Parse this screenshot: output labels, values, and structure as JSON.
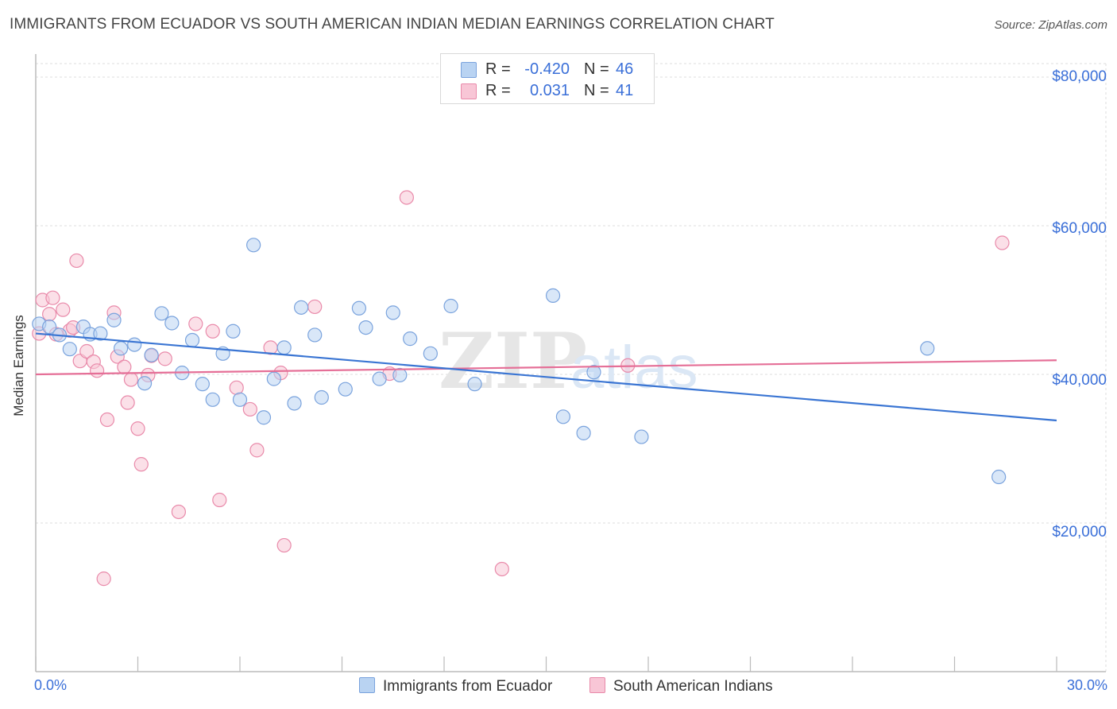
{
  "title": "IMMIGRANTS FROM ECUADOR VS SOUTH AMERICAN INDIAN MEDIAN EARNINGS CORRELATION CHART",
  "source": "Source: ZipAtlas.com",
  "watermark": {
    "zip": "ZIP",
    "atlas": "atlas"
  },
  "legend_top": {
    "rows": [
      {
        "r_label": "R =",
        "r_value": "-0.420",
        "n_label": "N =",
        "n_value": "46"
      },
      {
        "r_label": "R =",
        "r_value": "0.031",
        "n_label": "N =",
        "n_value": "41"
      }
    ]
  },
  "colors": {
    "blue_fill": "#b9d3f2",
    "blue_stroke": "#7aa3dd",
    "blue_line": "#3a75d3",
    "pink_fill": "#f8c6d6",
    "pink_stroke": "#e98aaa",
    "pink_line": "#e56f97",
    "accent_text": "#3a6fd8",
    "grid": "#dcdcdc"
  },
  "chart_data": {
    "type": "scatter",
    "title": "IMMIGRANTS FROM ECUADOR VS SOUTH AMERICAN INDIAN MEDIAN EARNINGS CORRELATION CHART",
    "xlabel": "",
    "ylabel": "Median Earnings",
    "xlim": [
      0,
      30
    ],
    "ylim": [
      0,
      80000
    ],
    "x_tick_labels": [
      "0.0%",
      "30.0%"
    ],
    "y_ticks": [
      20000,
      40000,
      60000,
      80000
    ],
    "y_tick_labels": [
      "$20,000",
      "$40,000",
      "$60,000",
      "$80,000"
    ],
    "grid": true,
    "legend_position": "bottom",
    "series": [
      {
        "name": "Immigrants from Ecuador",
        "r": -0.42,
        "n": 46,
        "trend": {
          "x": [
            0,
            30
          ],
          "y": [
            45500,
            33800
          ]
        },
        "points": [
          {
            "x": 0.1,
            "y": 46800
          },
          {
            "x": 0.4,
            "y": 46400
          },
          {
            "x": 0.7,
            "y": 45300
          },
          {
            "x": 1.0,
            "y": 43400
          },
          {
            "x": 1.4,
            "y": 46400
          },
          {
            "x": 1.6,
            "y": 45400
          },
          {
            "x": 1.9,
            "y": 45500
          },
          {
            "x": 2.3,
            "y": 47300
          },
          {
            "x": 2.5,
            "y": 43500
          },
          {
            "x": 2.9,
            "y": 44000
          },
          {
            "x": 3.2,
            "y": 38800
          },
          {
            "x": 3.4,
            "y": 42600
          },
          {
            "x": 3.7,
            "y": 48200
          },
          {
            "x": 4.0,
            "y": 46900
          },
          {
            "x": 4.3,
            "y": 40200
          },
          {
            "x": 4.6,
            "y": 44600
          },
          {
            "x": 4.9,
            "y": 38700
          },
          {
            "x": 5.2,
            "y": 36600
          },
          {
            "x": 5.5,
            "y": 42800
          },
          {
            "x": 5.8,
            "y": 45800
          },
          {
            "x": 6.0,
            "y": 36600
          },
          {
            "x": 6.4,
            "y": 57400
          },
          {
            "x": 6.7,
            "y": 34200
          },
          {
            "x": 7.0,
            "y": 39400
          },
          {
            "x": 7.3,
            "y": 43600
          },
          {
            "x": 7.6,
            "y": 36100
          },
          {
            "x": 7.8,
            "y": 49000
          },
          {
            "x": 8.2,
            "y": 45300
          },
          {
            "x": 8.4,
            "y": 36900
          },
          {
            "x": 9.1,
            "y": 38000
          },
          {
            "x": 9.5,
            "y": 48900
          },
          {
            "x": 9.7,
            "y": 46300
          },
          {
            "x": 10.1,
            "y": 39400
          },
          {
            "x": 10.5,
            "y": 48300
          },
          {
            "x": 10.7,
            "y": 39900
          },
          {
            "x": 11.0,
            "y": 44800
          },
          {
            "x": 11.6,
            "y": 42800
          },
          {
            "x": 12.2,
            "y": 49200
          },
          {
            "x": 12.9,
            "y": 38700
          },
          {
            "x": 15.2,
            "y": 50600
          },
          {
            "x": 15.5,
            "y": 34300
          },
          {
            "x": 16.1,
            "y": 32100
          },
          {
            "x": 16.4,
            "y": 40300
          },
          {
            "x": 17.8,
            "y": 31600
          },
          {
            "x": 26.2,
            "y": 43500
          },
          {
            "x": 28.3,
            "y": 26200
          }
        ]
      },
      {
        "name": "South American Indians",
        "r": 0.031,
        "n": 41,
        "trend": {
          "x": [
            0,
            30
          ],
          "y": [
            40000,
            41900
          ]
        },
        "points": [
          {
            "x": 0.1,
            "y": 45500
          },
          {
            "x": 0.2,
            "y": 50000
          },
          {
            "x": 0.4,
            "y": 48100
          },
          {
            "x": 0.5,
            "y": 50300
          },
          {
            "x": 0.6,
            "y": 45400
          },
          {
            "x": 0.8,
            "y": 48700
          },
          {
            "x": 1.0,
            "y": 45900
          },
          {
            "x": 1.1,
            "y": 46300
          },
          {
            "x": 1.2,
            "y": 55300
          },
          {
            "x": 1.3,
            "y": 41800
          },
          {
            "x": 1.5,
            "y": 43100
          },
          {
            "x": 1.7,
            "y": 41700
          },
          {
            "x": 1.8,
            "y": 40500
          },
          {
            "x": 2.0,
            "y": 12500
          },
          {
            "x": 2.1,
            "y": 33900
          },
          {
            "x": 2.3,
            "y": 48300
          },
          {
            "x": 2.4,
            "y": 42400
          },
          {
            "x": 2.6,
            "y": 41000
          },
          {
            "x": 2.7,
            "y": 36200
          },
          {
            "x": 2.8,
            "y": 39300
          },
          {
            "x": 3.0,
            "y": 32700
          },
          {
            "x": 3.1,
            "y": 27900
          },
          {
            "x": 3.3,
            "y": 39900
          },
          {
            "x": 3.4,
            "y": 42500
          },
          {
            "x": 3.8,
            "y": 42100
          },
          {
            "x": 4.2,
            "y": 21500
          },
          {
            "x": 4.7,
            "y": 46800
          },
          {
            "x": 5.2,
            "y": 45800
          },
          {
            "x": 5.4,
            "y": 23100
          },
          {
            "x": 5.9,
            "y": 38200
          },
          {
            "x": 6.3,
            "y": 35300
          },
          {
            "x": 6.5,
            "y": 29800
          },
          {
            "x": 6.9,
            "y": 43600
          },
          {
            "x": 7.2,
            "y": 40200
          },
          {
            "x": 7.3,
            "y": 17000
          },
          {
            "x": 8.2,
            "y": 49100
          },
          {
            "x": 10.4,
            "y": 40100
          },
          {
            "x": 10.9,
            "y": 63800
          },
          {
            "x": 13.7,
            "y": 13800
          },
          {
            "x": 17.4,
            "y": 41200
          },
          {
            "x": 28.4,
            "y": 57700
          }
        ]
      }
    ]
  }
}
